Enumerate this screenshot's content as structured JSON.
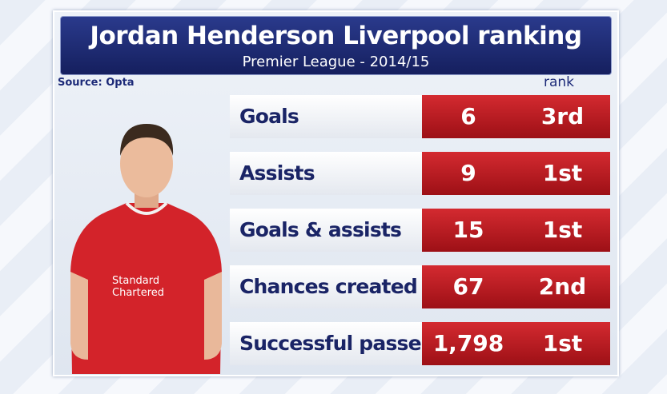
{
  "header": {
    "title": "Jordan Henderson Liverpool ranking",
    "subtitle": "Premier League - 2014/15"
  },
  "source": "Source: Opta",
  "rank_header": "rank",
  "table": {
    "rows": [
      [
        "Goals",
        "6",
        "3rd"
      ],
      [
        "Assists",
        "9",
        "1st"
      ],
      [
        "Goals & assists",
        "15",
        "1st"
      ],
      [
        "Chances created",
        "67",
        "2nd"
      ],
      [
        "Successful passes",
        "1,798",
        "1st"
      ]
    ]
  }
}
